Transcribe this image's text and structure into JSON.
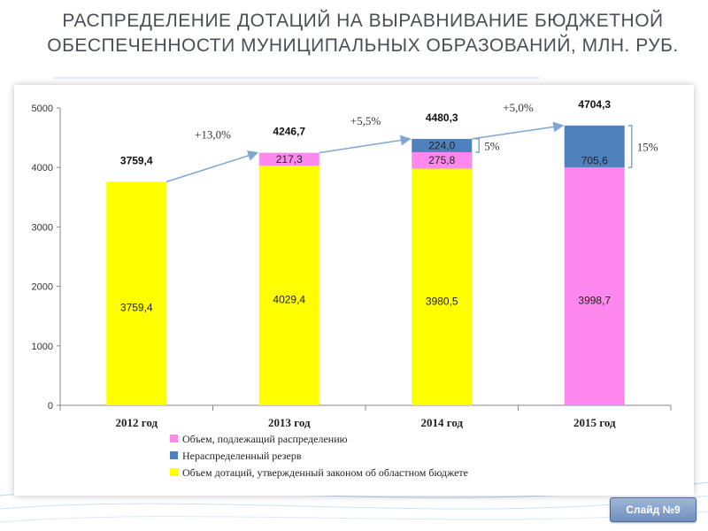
{
  "title": {
    "line1": "РАСПРЕДЕЛЕНИЕ ДОТАЦИЙ НА ВЫРАВНИВАНИЕ БЮДЖЕТНОЙ",
    "line2": "ОБЕСПЕЧЕННОСТИ МУНИЦИПАЛЬНЫХ ОБРАЗОВАНИЙ, МЛН. РУБ."
  },
  "slide_number": "Слайд №9",
  "colors": {
    "approved": "#ffff00",
    "distributed": "#ff88ee",
    "reserve": "#4f81bd",
    "arrow": "#7fa7d4"
  },
  "chart_data": {
    "type": "bar",
    "stacked": true,
    "categories": [
      "2012 год",
      "2013 год",
      "2014 год",
      "2015 год"
    ],
    "series": [
      {
        "name": "Объем дотаций, утвержденный законом об областном бюджете",
        "key": "approved",
        "values": [
          3759.4,
          4029.4,
          3980.5,
          null
        ],
        "labels": [
          "3759,4",
          "4029,4",
          "3980,5",
          ""
        ]
      },
      {
        "name": "Объем, подлежащий распределению",
        "key": "distributed",
        "values": [
          null,
          217.3,
          275.8,
          3998.7
        ],
        "labels": [
          "",
          "217,3",
          "275,8",
          "3998,7"
        ]
      },
      {
        "name": "Нераспределенный резерв",
        "key": "reserve",
        "values": [
          null,
          null,
          224.0,
          705.6
        ],
        "labels": [
          "",
          "",
          "224,0",
          "705,6"
        ]
      }
    ],
    "totals": [
      "3759,4",
      "4246,7",
      "4480,3",
      "4704,3"
    ],
    "total_values": [
      3759.4,
      4246.7,
      4480.3,
      4704.3
    ],
    "growth": [
      "+13,0%",
      "+5,5%",
      "+5,0%"
    ],
    "reserve_shares": [
      "",
      "",
      "5%",
      "15%"
    ],
    "ylim": [
      0,
      5000
    ],
    "yticks": [
      "0",
      "1000",
      "2000",
      "3000",
      "4000",
      "5000"
    ],
    "legend": [
      {
        "key": "distributed",
        "label": "Объем, подлежащий распределению"
      },
      {
        "key": "reserve",
        "label": "Нераспределенный резерв"
      },
      {
        "key": "approved",
        "label": "Объем дотаций, утвержденный законом об областном бюджете"
      }
    ],
    "legend_position": "bottom",
    "grid": false
  }
}
